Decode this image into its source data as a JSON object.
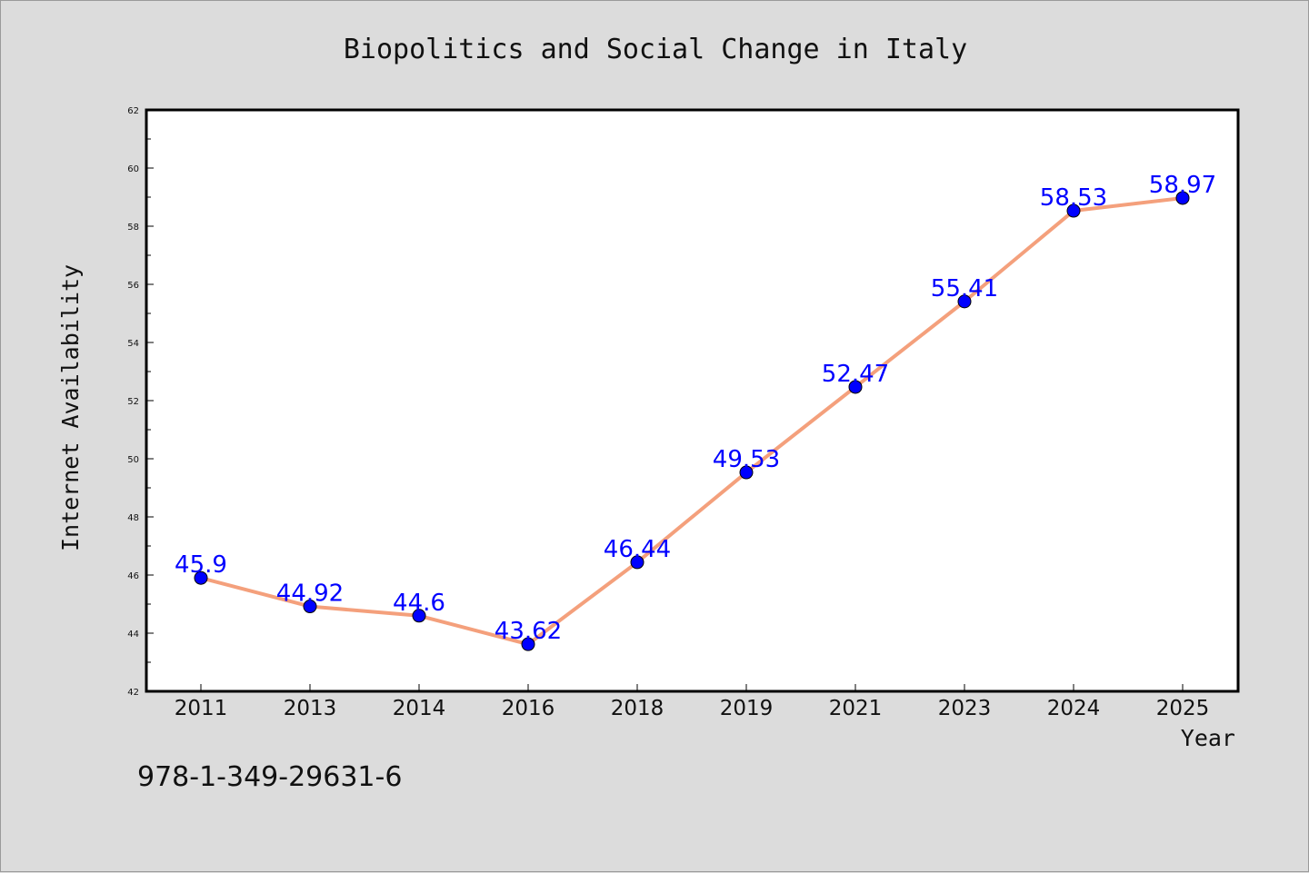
{
  "chart_data": {
    "type": "line",
    "title": "Biopolitics and Social Change in Italy",
    "xlabel": "Year",
    "ylabel": "Internet Availability",
    "categories": [
      "2011",
      "2013",
      "2014",
      "2016",
      "2018",
      "2019",
      "2021",
      "2023",
      "2024",
      "2025"
    ],
    "series": [
      {
        "values": [
          45.9,
          44.92,
          44.6,
          43.62,
          46.44,
          49.53,
          52.47,
          55.41,
          58.53,
          58.97
        ],
        "labels": [
          "45.9",
          "44.92",
          "44.6",
          "43.62",
          "46.44",
          "49.53",
          "52.47",
          "55.41",
          "58.53",
          "58.97"
        ]
      }
    ],
    "ylim": [
      42,
      62
    ],
    "yticks": [
      "42",
      "44",
      "46",
      "48",
      "50",
      "52",
      "54",
      "56",
      "58",
      "60",
      "62"
    ],
    "grid": false,
    "legend": "none",
    "colors": {
      "line": "#f4a07c",
      "marker": "#0000ff",
      "label": "#0000ff"
    }
  },
  "footer": {
    "isbn": "978-1-349-29631-6"
  }
}
